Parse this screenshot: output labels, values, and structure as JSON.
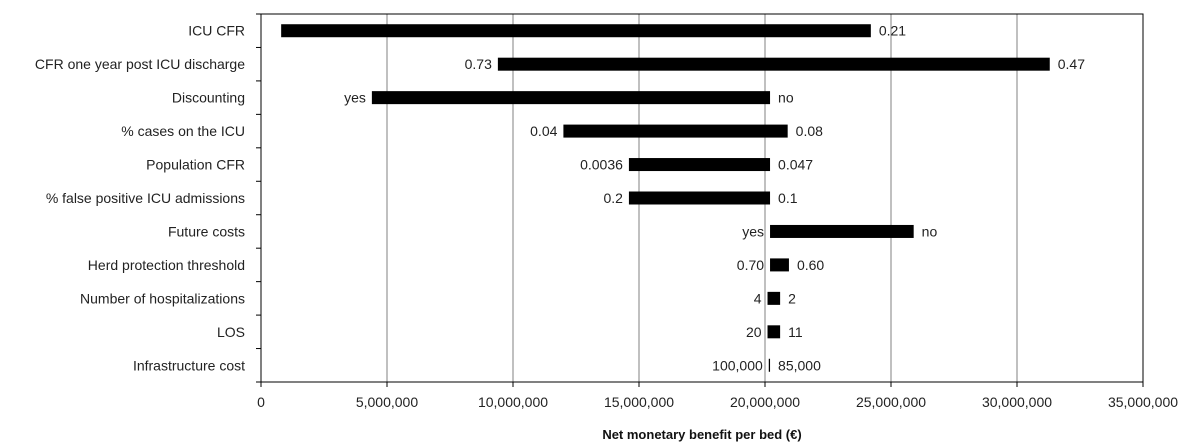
{
  "chart_data": {
    "type": "bar",
    "orientation": "horizontal",
    "subtype": "tornado",
    "title": "",
    "xlabel": "Net monetary benefit per bed (€)",
    "ylabel": "",
    "xlim": [
      0,
      35000000
    ],
    "xticks": [
      0,
      5000000,
      10000000,
      15000000,
      20000000,
      25000000,
      30000000,
      35000000
    ],
    "xtick_labels": [
      "0",
      "5,000,000",
      "10,000,000",
      "15,000,000",
      "20,000,000",
      "25,000,000",
      "30,000,000",
      "35,000,000"
    ],
    "grid": "vertical",
    "bar_color": "#000000",
    "categories": [
      "ICU CFR",
      "CFR one year post ICU discharge",
      "Discounting",
      "% cases on the ICU",
      "Population CFR",
      "% false positive ICU admissions",
      "Future costs",
      "Herd protection threshold",
      "Number of hospitalizations",
      "LOS",
      "Infrastructure cost"
    ],
    "bars": [
      {
        "low": 800000,
        "high": 24200000,
        "low_label": "",
        "high_label": "0.21"
      },
      {
        "low": 9400000,
        "high": 31300000,
        "low_label": "0.73",
        "high_label": "0.47"
      },
      {
        "low": 4400000,
        "high": 20200000,
        "low_label": "yes",
        "high_label": "no"
      },
      {
        "low": 12000000,
        "high": 20900000,
        "low_label": "0.04",
        "high_label": "0.08"
      },
      {
        "low": 14600000,
        "high": 20200000,
        "low_label": "0.0036",
        "high_label": "0.047"
      },
      {
        "low": 14600000,
        "high": 20200000,
        "low_label": "0.2",
        "high_label": "0.1"
      },
      {
        "low": 20200000,
        "high": 25900000,
        "low_label": "yes",
        "high_label": "no"
      },
      {
        "low": 20200000,
        "high": 20950000,
        "low_label": "0.70",
        "high_label": "0.60"
      },
      {
        "low": 20100000,
        "high": 20600000,
        "low_label": "4",
        "high_label": "2"
      },
      {
        "low": 20100000,
        "high": 20600000,
        "low_label": "20",
        "high_label": "11"
      },
      {
        "low": 20150000,
        "high": 20200000,
        "low_label": "100,000",
        "high_label": "85,000"
      }
    ]
  }
}
